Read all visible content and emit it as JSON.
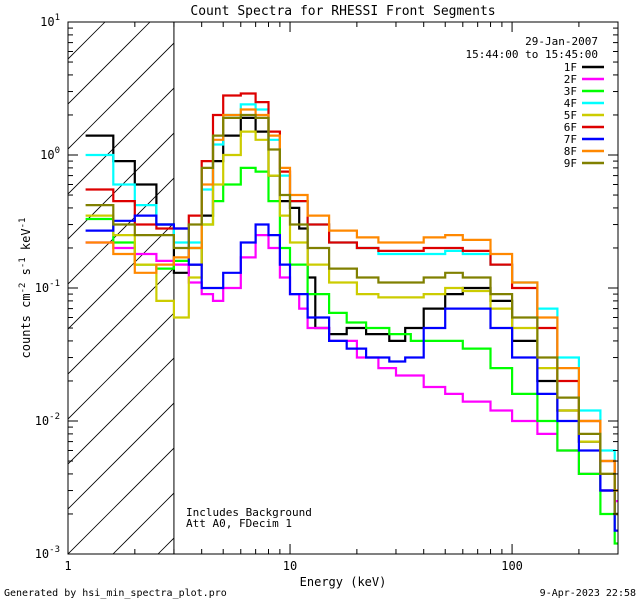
{
  "chart_data": {
    "type": "line",
    "title": "Count Spectra for RHESSI Front Segments",
    "xlabel": "Energy (keV)",
    "ylabel": "counts cm^-2 s^-1 keV^-1",
    "xscale": "log",
    "yscale": "log",
    "xlim": [
      1,
      300
    ],
    "ylim": [
      0.001,
      10
    ],
    "x_tick_labels": [
      {
        "value": 1,
        "label": "1"
      },
      {
        "value": 10,
        "label": "10"
      },
      {
        "value": 100,
        "label": "100"
      }
    ],
    "y_tick_labels": [
      {
        "value": 0.001,
        "base": "10",
        "exp": "-3"
      },
      {
        "value": 0.01,
        "base": "10",
        "exp": "-2"
      },
      {
        "value": 0.1,
        "base": "10",
        "exp": "-1"
      },
      {
        "value": 1,
        "base": "10",
        "exp": "0"
      },
      {
        "value": 10,
        "base": "10",
        "exp": "1"
      }
    ],
    "date": "29-Jan-2007",
    "time_range": "15:44:00 to 15:45:00",
    "hatched_region_max_energy": 3,
    "annotations": [
      "Includes Background",
      "Att A0, FDecim 1"
    ],
    "footer_left": "Generated by hsi_min_spectra_plot.pro",
    "footer_right": "9-Apr-2023 22:58",
    "series": [
      {
        "name": "1F",
        "color": "#000000",
        "points": [
          [
            1.2,
            1.4
          ],
          [
            1.6,
            0.9
          ],
          [
            2.0,
            0.6
          ],
          [
            2.5,
            0.3
          ],
          [
            3.0,
            0.13
          ],
          [
            3.5,
            0.15
          ],
          [
            4.0,
            0.35
          ],
          [
            4.5,
            0.9
          ],
          [
            5.0,
            1.4
          ],
          [
            6.0,
            1.9
          ],
          [
            7.0,
            1.5
          ],
          [
            8.0,
            0.7
          ],
          [
            9.0,
            0.45
          ],
          [
            10.0,
            0.4
          ],
          [
            11.0,
            0.28
          ],
          [
            12.0,
            0.12
          ],
          [
            13.0,
            0.05
          ],
          [
            15.0,
            0.045
          ],
          [
            18.0,
            0.05
          ],
          [
            22.0,
            0.045
          ],
          [
            28.0,
            0.04
          ],
          [
            33.0,
            0.05
          ],
          [
            40.0,
            0.07
          ],
          [
            50.0,
            0.09
          ],
          [
            60.0,
            0.1
          ],
          [
            70.0,
            0.1
          ],
          [
            80.0,
            0.08
          ],
          [
            100.0,
            0.04
          ],
          [
            130.0,
            0.02
          ],
          [
            160.0,
            0.012
          ],
          [
            200.0,
            0.007
          ],
          [
            250.0,
            0.003
          ],
          [
            290.0,
            0.002
          ]
        ]
      },
      {
        "name": "2F",
        "color": "#ff00ff",
        "points": [
          [
            1.2,
            0.22
          ],
          [
            1.6,
            0.2
          ],
          [
            2.0,
            0.18
          ],
          [
            2.5,
            0.16
          ],
          [
            3.0,
            0.15
          ],
          [
            3.5,
            0.11
          ],
          [
            4.0,
            0.09
          ],
          [
            4.5,
            0.08
          ],
          [
            5.0,
            0.1
          ],
          [
            6.0,
            0.17
          ],
          [
            7.0,
            0.25
          ],
          [
            8.0,
            0.2
          ],
          [
            9.0,
            0.12
          ],
          [
            10.0,
            0.09
          ],
          [
            11.0,
            0.07
          ],
          [
            12.0,
            0.05
          ],
          [
            15.0,
            0.04
          ],
          [
            20.0,
            0.03
          ],
          [
            25.0,
            0.025
          ],
          [
            30.0,
            0.022
          ],
          [
            40.0,
            0.018
          ],
          [
            50.0,
            0.016
          ],
          [
            60.0,
            0.014
          ],
          [
            80.0,
            0.012
          ],
          [
            100.0,
            0.01
          ],
          [
            130.0,
            0.008
          ],
          [
            160.0,
            0.006
          ],
          [
            200.0,
            0.004
          ],
          [
            250.0,
            0.003
          ],
          [
            290.0,
            0.0025
          ]
        ]
      },
      {
        "name": "3F",
        "color": "#00ff00",
        "points": [
          [
            1.2,
            0.33
          ],
          [
            1.6,
            0.22
          ],
          [
            2.0,
            0.15
          ],
          [
            2.5,
            0.14
          ],
          [
            3.0,
            0.16
          ],
          [
            3.5,
            0.2
          ],
          [
            4.0,
            0.3
          ],
          [
            4.5,
            0.45
          ],
          [
            5.0,
            0.6
          ],
          [
            6.0,
            0.8
          ],
          [
            7.0,
            0.75
          ],
          [
            8.0,
            0.45
          ],
          [
            9.0,
            0.2
          ],
          [
            10.0,
            0.15
          ],
          [
            12.0,
            0.09
          ],
          [
            15.0,
            0.065
          ],
          [
            18.0,
            0.055
          ],
          [
            22.0,
            0.05
          ],
          [
            28.0,
            0.045
          ],
          [
            35.0,
            0.04
          ],
          [
            45.0,
            0.04
          ],
          [
            60.0,
            0.035
          ],
          [
            80.0,
            0.025
          ],
          [
            100.0,
            0.016
          ],
          [
            130.0,
            0.01
          ],
          [
            160.0,
            0.006
          ],
          [
            200.0,
            0.004
          ],
          [
            250.0,
            0.002
          ],
          [
            290.0,
            0.0012
          ]
        ]
      },
      {
        "name": "4F",
        "color": "#00ffff",
        "points": [
          [
            1.2,
            1.0
          ],
          [
            1.6,
            0.6
          ],
          [
            2.0,
            0.42
          ],
          [
            2.5,
            0.3
          ],
          [
            3.0,
            0.22
          ],
          [
            3.5,
            0.22
          ],
          [
            4.0,
            0.55
          ],
          [
            4.5,
            1.2
          ],
          [
            5.0,
            2.0
          ],
          [
            6.0,
            2.4
          ],
          [
            7.0,
            2.2
          ],
          [
            8.0,
            1.3
          ],
          [
            9.0,
            0.7
          ],
          [
            10.0,
            0.45
          ],
          [
            12.0,
            0.3
          ],
          [
            15.0,
            0.22
          ],
          [
            20.0,
            0.2
          ],
          [
            25.0,
            0.18
          ],
          [
            30.0,
            0.18
          ],
          [
            40.0,
            0.18
          ],
          [
            50.0,
            0.19
          ],
          [
            60.0,
            0.18
          ],
          [
            80.0,
            0.15
          ],
          [
            100.0,
            0.11
          ],
          [
            130.0,
            0.07
          ],
          [
            160.0,
            0.03
          ],
          [
            200.0,
            0.012
          ],
          [
            250.0,
            0.006
          ],
          [
            290.0,
            0.003
          ]
        ]
      },
      {
        "name": "5F",
        "color": "#cccc00",
        "points": [
          [
            1.2,
            0.35
          ],
          [
            1.6,
            0.25
          ],
          [
            2.0,
            0.15
          ],
          [
            2.5,
            0.08
          ],
          [
            3.0,
            0.06
          ],
          [
            3.5,
            0.12
          ],
          [
            4.0,
            0.3
          ],
          [
            4.5,
            0.6
          ],
          [
            5.0,
            1.0
          ],
          [
            6.0,
            1.5
          ],
          [
            7.0,
            1.3
          ],
          [
            8.0,
            0.7
          ],
          [
            9.0,
            0.35
          ],
          [
            10.0,
            0.22
          ],
          [
            12.0,
            0.15
          ],
          [
            15.0,
            0.11
          ],
          [
            20.0,
            0.09
          ],
          [
            25.0,
            0.085
          ],
          [
            30.0,
            0.085
          ],
          [
            40.0,
            0.09
          ],
          [
            50.0,
            0.1
          ],
          [
            60.0,
            0.095
          ],
          [
            80.0,
            0.07
          ],
          [
            100.0,
            0.05
          ],
          [
            130.0,
            0.025
          ],
          [
            160.0,
            0.012
          ],
          [
            200.0,
            0.007
          ],
          [
            250.0,
            0.004
          ],
          [
            290.0,
            0.002
          ]
        ]
      },
      {
        "name": "6F",
        "color": "#dd0000",
        "points": [
          [
            1.2,
            0.55
          ],
          [
            1.6,
            0.45
          ],
          [
            2.0,
            0.3
          ],
          [
            2.5,
            0.28
          ],
          [
            3.0,
            0.28
          ],
          [
            3.5,
            0.35
          ],
          [
            4.0,
            0.9
          ],
          [
            4.5,
            2.0
          ],
          [
            5.0,
            2.8
          ],
          [
            6.0,
            2.9
          ],
          [
            7.0,
            2.5
          ],
          [
            8.0,
            1.5
          ],
          [
            9.0,
            0.75
          ],
          [
            10.0,
            0.45
          ],
          [
            12.0,
            0.3
          ],
          [
            15.0,
            0.22
          ],
          [
            20.0,
            0.2
          ],
          [
            25.0,
            0.19
          ],
          [
            30.0,
            0.19
          ],
          [
            40.0,
            0.2
          ],
          [
            50.0,
            0.2
          ],
          [
            60.0,
            0.19
          ],
          [
            80.0,
            0.15
          ],
          [
            100.0,
            0.1
          ],
          [
            130.0,
            0.05
          ],
          [
            160.0,
            0.02
          ],
          [
            200.0,
            0.01
          ],
          [
            250.0,
            0.005
          ],
          [
            290.0,
            0.003
          ]
        ]
      },
      {
        "name": "7F",
        "color": "#0000ff",
        "points": [
          [
            1.2,
            0.27
          ],
          [
            1.6,
            0.32
          ],
          [
            2.0,
            0.35
          ],
          [
            2.5,
            0.3
          ],
          [
            3.0,
            0.28
          ],
          [
            3.5,
            0.15
          ],
          [
            4.0,
            0.1
          ],
          [
            4.5,
            0.1
          ],
          [
            5.0,
            0.13
          ],
          [
            6.0,
            0.22
          ],
          [
            7.0,
            0.3
          ],
          [
            8.0,
            0.25
          ],
          [
            9.0,
            0.15
          ],
          [
            10.0,
            0.09
          ],
          [
            12.0,
            0.06
          ],
          [
            15.0,
            0.04
          ],
          [
            18.0,
            0.035
          ],
          [
            22.0,
            0.03
          ],
          [
            28.0,
            0.028
          ],
          [
            33.0,
            0.03
          ],
          [
            40.0,
            0.05
          ],
          [
            50.0,
            0.07
          ],
          [
            60.0,
            0.07
          ],
          [
            80.0,
            0.05
          ],
          [
            100.0,
            0.03
          ],
          [
            130.0,
            0.016
          ],
          [
            160.0,
            0.01
          ],
          [
            200.0,
            0.006
          ],
          [
            250.0,
            0.003
          ],
          [
            290.0,
            0.0015
          ]
        ]
      },
      {
        "name": "8F",
        "color": "#ff8800",
        "points": [
          [
            1.2,
            0.22
          ],
          [
            1.6,
            0.18
          ],
          [
            2.0,
            0.13
          ],
          [
            2.5,
            0.15
          ],
          [
            3.0,
            0.17
          ],
          [
            3.5,
            0.2
          ],
          [
            4.0,
            0.6
          ],
          [
            4.5,
            1.3
          ],
          [
            5.0,
            2.0
          ],
          [
            6.0,
            2.2
          ],
          [
            7.0,
            2.0
          ],
          [
            8.0,
            1.4
          ],
          [
            9.0,
            0.8
          ],
          [
            10.0,
            0.5
          ],
          [
            12.0,
            0.35
          ],
          [
            15.0,
            0.27
          ],
          [
            20.0,
            0.24
          ],
          [
            25.0,
            0.22
          ],
          [
            30.0,
            0.22
          ],
          [
            40.0,
            0.24
          ],
          [
            50.0,
            0.25
          ],
          [
            60.0,
            0.23
          ],
          [
            80.0,
            0.18
          ],
          [
            100.0,
            0.11
          ],
          [
            130.0,
            0.06
          ],
          [
            160.0,
            0.025
          ],
          [
            200.0,
            0.01
          ],
          [
            250.0,
            0.005
          ],
          [
            290.0,
            0.003
          ]
        ]
      },
      {
        "name": "9F",
        "color": "#808000",
        "points": [
          [
            1.2,
            0.42
          ],
          [
            1.6,
            0.3
          ],
          [
            2.0,
            0.25
          ],
          [
            2.5,
            0.25
          ],
          [
            3.0,
            0.2
          ],
          [
            3.5,
            0.3
          ],
          [
            4.0,
            0.8
          ],
          [
            4.5,
            1.4
          ],
          [
            5.0,
            1.9
          ],
          [
            6.0,
            2.0
          ],
          [
            7.0,
            1.9
          ],
          [
            8.0,
            1.1
          ],
          [
            9.0,
            0.5
          ],
          [
            10.0,
            0.3
          ],
          [
            12.0,
            0.2
          ],
          [
            15.0,
            0.14
          ],
          [
            20.0,
            0.12
          ],
          [
            25.0,
            0.11
          ],
          [
            30.0,
            0.11
          ],
          [
            40.0,
            0.12
          ],
          [
            50.0,
            0.13
          ],
          [
            60.0,
            0.12
          ],
          [
            80.0,
            0.09
          ],
          [
            100.0,
            0.06
          ],
          [
            130.0,
            0.03
          ],
          [
            160.0,
            0.015
          ],
          [
            200.0,
            0.008
          ],
          [
            250.0,
            0.004
          ],
          [
            290.0,
            0.002
          ]
        ]
      }
    ]
  }
}
